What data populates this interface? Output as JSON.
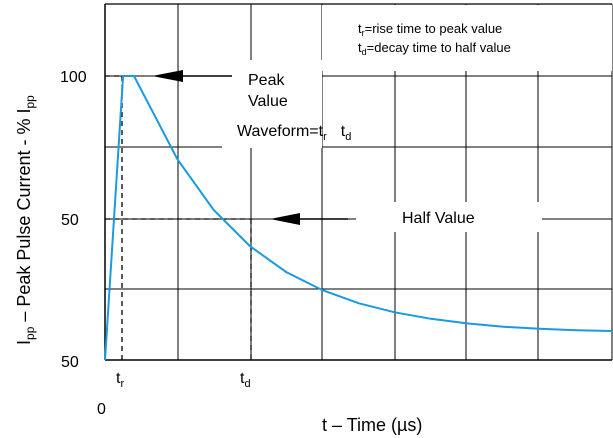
{
  "chart_data": {
    "type": "line",
    "title": "",
    "xlabel": "t – Time (µs)",
    "ylabel_parts": {
      "I": "I",
      "pp": "pp",
      "mid": " – Peak Pulse Current - % I",
      "pp2": "pp"
    },
    "x_origin_label": "0",
    "y_tick_labels": [
      "100",
      "50",
      "50"
    ],
    "x_markers": [
      {
        "base": "t",
        "sub": "r"
      },
      {
        "base": "t",
        "sub": "d"
      }
    ],
    "series": [
      {
        "color": "#1a9ae0",
        "x": [
          0,
          0.25,
          0.4,
          1,
          1.5,
          2,
          2.5,
          3,
          3.5,
          4,
          4.5,
          5,
          5.5,
          6,
          6.5,
          7
        ],
        "y": [
          0,
          100,
          100,
          70.7,
          52.9,
          40.1,
          31.0,
          24.6,
          20.0,
          16.8,
          14.5,
          12.9,
          11.7,
          11.0,
          10.5,
          10.2
        ]
      }
    ],
    "grid": true,
    "legend_box": {
      "line1": {
        "t": "t",
        "sub": "r",
        "text": "=rise time to peak value"
      },
      "line2": {
        "t": "t",
        "sub": "d",
        "text": "=decay time to half value"
      }
    },
    "annotations": {
      "peak_line1": "Peak",
      "peak_line2": "Value",
      "waveform_prefix": "Waveform=t",
      "waveform_sub_r": "r",
      "waveform_t2": "t",
      "waveform_sub_d": "d",
      "half_value": "Half Value"
    }
  }
}
